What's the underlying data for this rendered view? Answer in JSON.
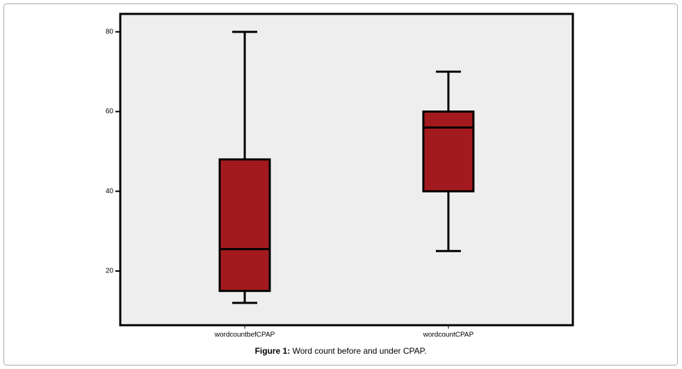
{
  "chart_data": {
    "type": "box",
    "figure_label": "Figure 1:",
    "title": "Word count before and under CPAP.",
    "categories": [
      "wordcountbefCPAP",
      "wordcountCPAP"
    ],
    "boxes": [
      {
        "min": 12,
        "q1": 15,
        "median": 25.5,
        "q3": 48,
        "max": 80
      },
      {
        "min": 25,
        "q1": 40,
        "median": 56,
        "q3": 60,
        "max": 70
      }
    ],
    "color": "#a31a1e",
    "ylim": [
      6.4,
      84.5
    ],
    "yticks": [
      20,
      40,
      60,
      80
    ]
  }
}
